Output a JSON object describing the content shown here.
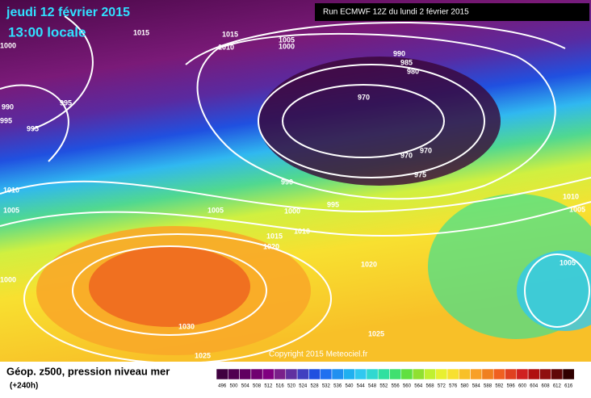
{
  "header": {
    "date": "jeudi 12 février 2015",
    "time": "13:00 locale",
    "run": "Run ECMWF 12Z du lundi 2 février 2015"
  },
  "isobar_labels": [
    "1015",
    "1015",
    "1010",
    "1005",
    "1000",
    "990",
    "985",
    "980",
    "970",
    "970",
    "970",
    "975",
    "990",
    "995",
    "1000",
    "1005",
    "1010",
    "1015",
    "1020",
    "1020",
    "1010",
    "1005",
    "1005",
    "1030",
    "1025",
    "1025",
    "995",
    "995",
    "990",
    "995",
    "1010",
    "1005",
    "1000",
    "1000"
  ],
  "copyright": "Copyright 2015 Meteociel.fr",
  "footer": {
    "title": "Géop. z500, pression niveau mer",
    "lead": "(+240h)"
  },
  "colorbar": {
    "labels": [
      "496",
      "500",
      "504",
      "508",
      "512",
      "516",
      "520",
      "524",
      "528",
      "532",
      "536",
      "540",
      "544",
      "548",
      "552",
      "556",
      "560",
      "564",
      "568",
      "572",
      "576",
      "580",
      "584",
      "588",
      "592",
      "596",
      "600",
      "604",
      "608",
      "612",
      "616"
    ]
  }
}
